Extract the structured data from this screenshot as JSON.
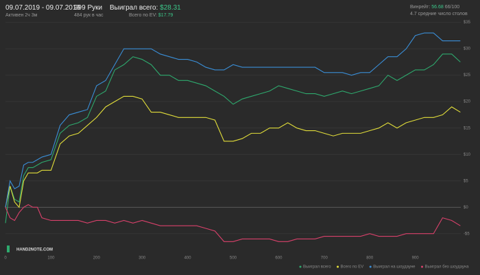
{
  "header": {
    "date_range": "09.07.2019 - 09.07.2019",
    "active": "Активен 2ч 3м",
    "hands": "999 Руки",
    "hands_per_hour": "484 рук в час",
    "won_label": "Выиграл всего:",
    "won_value": "$28.31",
    "ev_label": "Всего по EV:",
    "ev_value": "$17.79",
    "winrate_label": "Винрейт:",
    "winrate_value": "56.68",
    "winrate_unit": "66/100",
    "tables": "4.7 средние число столов"
  },
  "logo": "HAND2NOTE.COM",
  "chart_data": {
    "type": "line",
    "x": [
      0,
      10,
      20,
      30,
      40,
      50,
      60,
      70,
      80,
      100,
      120,
      140,
      160,
      180,
      200,
      220,
      240,
      260,
      280,
      300,
      320,
      340,
      360,
      380,
      400,
      420,
      440,
      460,
      480,
      500,
      520,
      540,
      560,
      580,
      600,
      620,
      640,
      660,
      680,
      700,
      720,
      740,
      760,
      780,
      800,
      820,
      840,
      860,
      880,
      900,
      920,
      940,
      960,
      980,
      999
    ],
    "series": [
      {
        "name": "Выиграл всего",
        "color": "#2eaa6e",
        "values": [
          -3,
          4,
          1.5,
          1,
          6,
          7.5,
          7.5,
          8,
          8.5,
          9,
          14,
          15.5,
          16,
          17,
          21,
          22,
          26,
          27,
          28.5,
          28,
          27,
          25,
          25,
          24,
          24,
          23.5,
          23,
          22,
          21,
          19.5,
          20.5,
          21,
          21.5,
          22,
          23,
          22.5,
          22,
          21.5,
          21.5,
          21,
          21.5,
          22,
          21.5,
          22,
          22.5,
          23,
          25,
          24,
          25,
          26,
          26,
          27,
          29,
          29,
          27.5
        ]
      },
      {
        "name": "Всего по EV",
        "color": "#e3df3a",
        "values": [
          0,
          4,
          1,
          0,
          5,
          6.5,
          6.5,
          6.5,
          7,
          7,
          12,
          13.5,
          14,
          15.5,
          17,
          19,
          20,
          21,
          21,
          20.5,
          18,
          18,
          17.5,
          17,
          17,
          17,
          17,
          16.5,
          12.5,
          12.5,
          13,
          14,
          14,
          15,
          15,
          16,
          15,
          14.5,
          14.5,
          14,
          13.5,
          14,
          14,
          14,
          14.5,
          15,
          16,
          15,
          16,
          16.5,
          17,
          17,
          17.5,
          19,
          18
        ]
      },
      {
        "name": "Выиграл на шоудауне",
        "color": "#3a8fd8",
        "values": [
          0,
          5,
          3.5,
          4,
          8,
          8.5,
          8.5,
          9,
          9.5,
          10,
          15.5,
          17.5,
          18,
          18.5,
          23,
          24,
          27,
          30,
          30,
          30,
          30,
          29,
          28.5,
          28,
          28,
          27.5,
          26.5,
          26,
          26,
          27,
          26.5,
          26.5,
          26.5,
          26.5,
          26.5,
          26.5,
          26.5,
          26.5,
          26.5,
          25.5,
          25.5,
          25.5,
          25,
          25.5,
          25.5,
          27,
          28.5,
          28.5,
          30,
          32.5,
          33,
          33,
          31.5,
          31.5,
          31.5
        ]
      },
      {
        "name": "Выиграл без шоудауна",
        "color": "#d9416b",
        "values": [
          0,
          -2,
          -2.5,
          -1,
          0,
          0.5,
          0,
          0,
          -2,
          -2.5,
          -2.5,
          -2.5,
          -2.5,
          -3,
          -2.5,
          -2.5,
          -3,
          -2.5,
          -3,
          -2.5,
          -3,
          -3.5,
          -3.5,
          -3.5,
          -3.5,
          -3.5,
          -4,
          -4.5,
          -6.5,
          -6.5,
          -6,
          -6,
          -6,
          -6,
          -6.5,
          -6.5,
          -6,
          -6,
          -6,
          -5.5,
          -5.5,
          -5.5,
          -5.5,
          -5.5,
          -5,
          -5.5,
          -5.5,
          -5.5,
          -5,
          -5,
          -5,
          -5,
          -2,
          -2.5,
          -3.5
        ]
      }
    ],
    "xlim": [
      0,
      1000
    ],
    "xticks": [
      0,
      100,
      200,
      300,
      400,
      500,
      600,
      700,
      800,
      900
    ],
    "ylim": [
      -8.8,
      35.6
    ],
    "yticks": [
      {
        "value": -5,
        "label": "-$5"
      },
      {
        "value": 0,
        "label": "$0"
      },
      {
        "value": 5,
        "label": "$5"
      },
      {
        "value": 10,
        "label": "$10"
      },
      {
        "value": 15,
        "label": "$15"
      },
      {
        "value": 20,
        "label": "$20"
      },
      {
        "value": 25,
        "label": "$25"
      },
      {
        "value": 30,
        "label": "$30"
      },
      {
        "value": 35,
        "label": "$35"
      }
    ],
    "grid": true
  }
}
